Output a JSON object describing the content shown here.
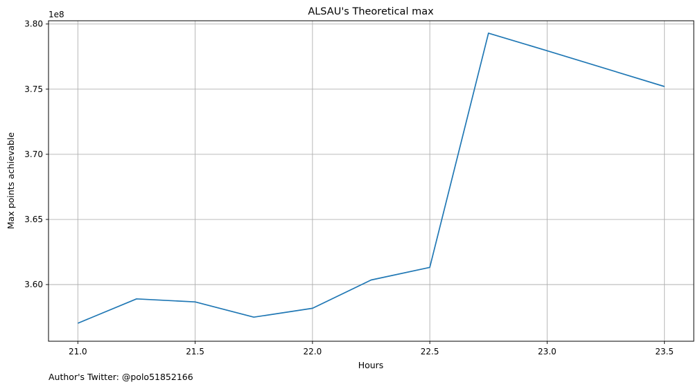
{
  "chart_data": {
    "type": "line",
    "title": "ALSAU's Theoretical max",
    "xlabel": "Hours",
    "ylabel": "Max points achievable",
    "y_offset_label": "1e8",
    "x_ticks": [
      "21.0",
      "21.5",
      "22.0",
      "22.5",
      "23.0",
      "23.5"
    ],
    "y_ticks": [
      "3.60",
      "3.65",
      "3.70",
      "3.75",
      "3.80"
    ],
    "xlim": [
      20.875,
      23.625
    ],
    "ylim": [
      3.5565,
      3.8025
    ],
    "grid": true,
    "series": [
      {
        "color": "#1f77b4",
        "x": [
          21.0,
          21.25,
          21.5,
          21.75,
          22.0,
          22.25,
          22.5,
          22.75,
          23.0,
          23.5
        ],
        "y": [
          3.5703,
          3.589,
          3.5867,
          3.575,
          3.5818,
          3.6035,
          3.6132,
          3.793,
          3.7795,
          3.752
        ]
      }
    ]
  },
  "footer": {
    "text": "Author's Twitter: @polo51852166"
  }
}
